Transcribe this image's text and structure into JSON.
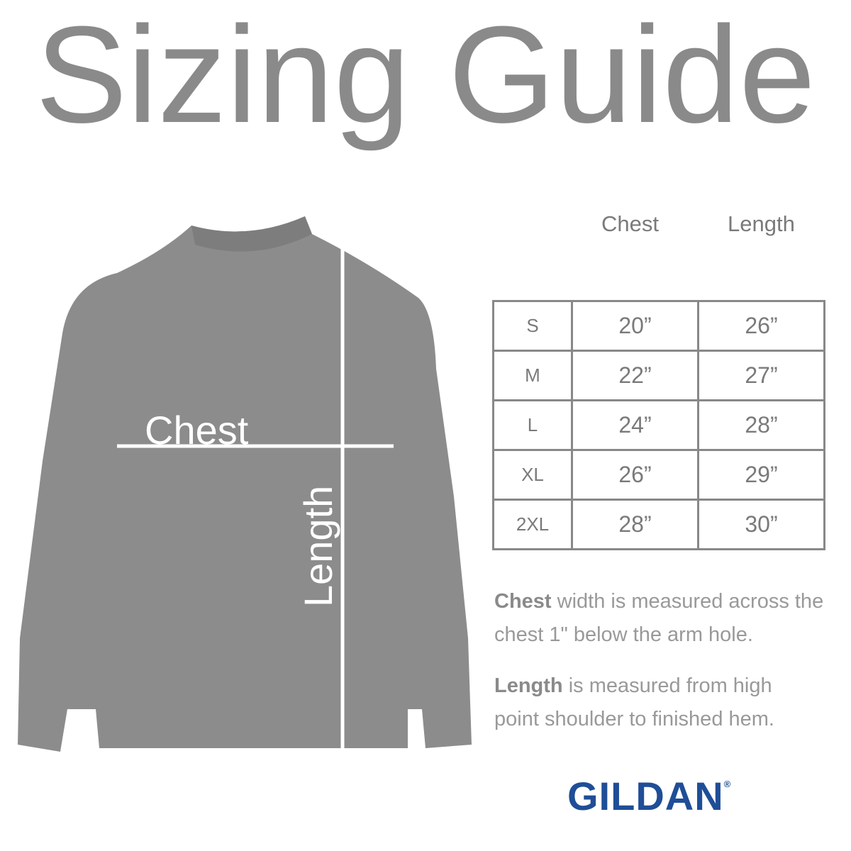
{
  "title": "Sizing Guide",
  "diagram": {
    "chest_label": "Chest",
    "length_label": "Length",
    "garment_color": "#8c8c8c"
  },
  "table": {
    "headers": [
      "Chest",
      "Length"
    ],
    "rows": [
      {
        "size": "S",
        "chest": "20”",
        "length": "26”"
      },
      {
        "size": "M",
        "chest": "22”",
        "length": "27”"
      },
      {
        "size": "L",
        "chest": "24”",
        "length": "28”"
      },
      {
        "size": "XL",
        "chest": "26”",
        "length": "29”"
      },
      {
        "size": "2XL",
        "chest": "28”",
        "length": "30”"
      }
    ]
  },
  "notes": {
    "chest_bold": "Chest",
    "chest_text": " width is measured across the chest 1\" below the arm hole.",
    "length_bold": "Length",
    "length_text": " is measured from high point shoulder to finished hem."
  },
  "brand": {
    "name": "GILDAN",
    "mark": "®",
    "color": "#1f4e97"
  }
}
